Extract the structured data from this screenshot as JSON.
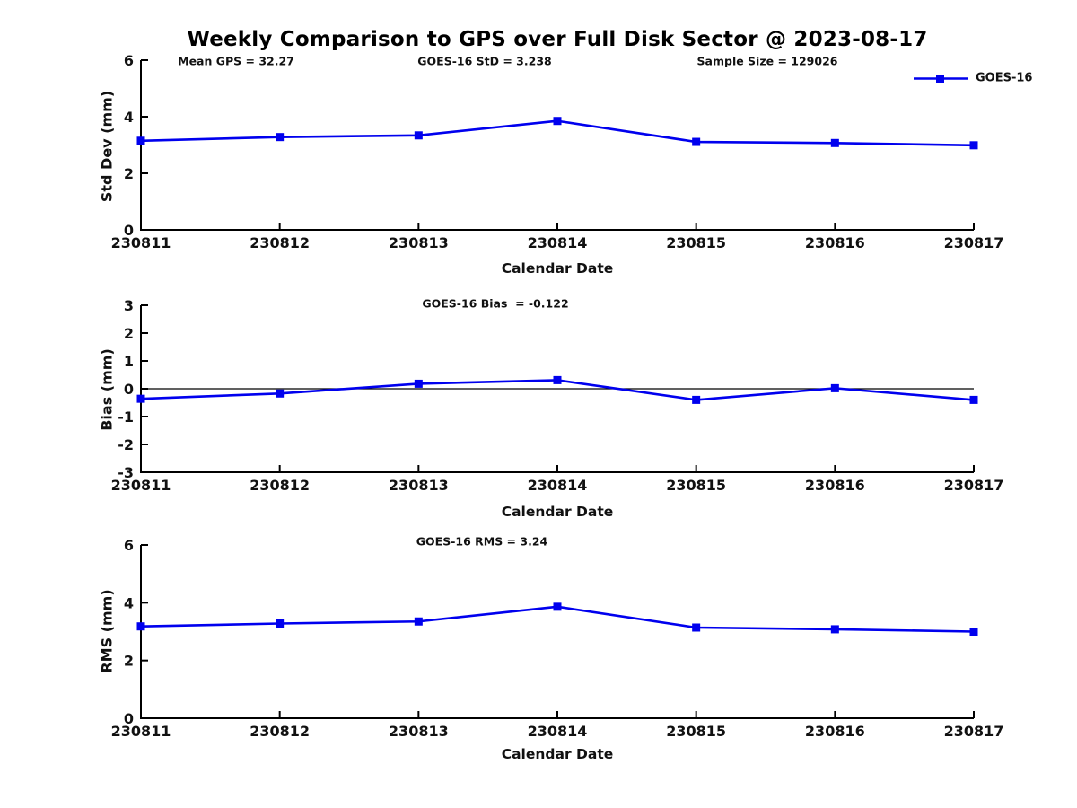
{
  "title": "Weekly Comparison to GPS over Full Disk Sector @ 2023-08-17",
  "colors": {
    "series": "#0000EE",
    "axis": "#000000",
    "zero_line": "#000000",
    "text": "#111111",
    "background": "#FFFFFF"
  },
  "chart_data": [
    {
      "type": "line",
      "name": "std-dev",
      "categories": [
        "230811",
        "230812",
        "230813",
        "230814",
        "230815",
        "230816",
        "230817"
      ],
      "series": [
        {
          "name": "GOES-16",
          "values": [
            3.15,
            3.28,
            3.34,
            3.85,
            3.11,
            3.07,
            2.99
          ]
        }
      ],
      "xlabel": "Calendar Date",
      "ylabel": "Std Dev (mm)",
      "ylim": [
        0,
        6
      ],
      "yticks": [
        0,
        2,
        4,
        6
      ],
      "grid": false,
      "zero_line": false,
      "annotations": [
        "Mean GPS = 32.27",
        "GOES-16 StD = 3.238",
        "Sample Size = 129026"
      ],
      "legend": {
        "label": "GOES-16",
        "position": "top-right"
      }
    },
    {
      "type": "line",
      "name": "bias",
      "categories": [
        "230811",
        "230812",
        "230813",
        "230814",
        "230815",
        "230816",
        "230817"
      ],
      "series": [
        {
          "name": "GOES-16",
          "values": [
            -0.36,
            -0.17,
            0.18,
            0.31,
            -0.4,
            0.02,
            -0.4
          ]
        }
      ],
      "xlabel": "Calendar Date",
      "ylabel": "Bias (mm)",
      "ylim": [
        -3,
        3
      ],
      "yticks": [
        -3,
        -2,
        -1,
        0,
        1,
        2,
        3
      ],
      "grid": false,
      "zero_line": true,
      "annotations": [
        "GOES-16 Bias  = -0.122"
      ],
      "legend": null
    },
    {
      "type": "line",
      "name": "rms",
      "categories": [
        "230811",
        "230812",
        "230813",
        "230814",
        "230815",
        "230816",
        "230817"
      ],
      "series": [
        {
          "name": "GOES-16",
          "values": [
            3.18,
            3.28,
            3.35,
            3.86,
            3.14,
            3.08,
            3.0
          ]
        }
      ],
      "xlabel": "Calendar Date",
      "ylabel": "RMS (mm)",
      "ylim": [
        0,
        6
      ],
      "yticks": [
        0,
        2,
        4,
        6
      ],
      "grid": false,
      "zero_line": false,
      "annotations": [
        "GOES-16 RMS = 3.24"
      ],
      "legend": null
    }
  ]
}
